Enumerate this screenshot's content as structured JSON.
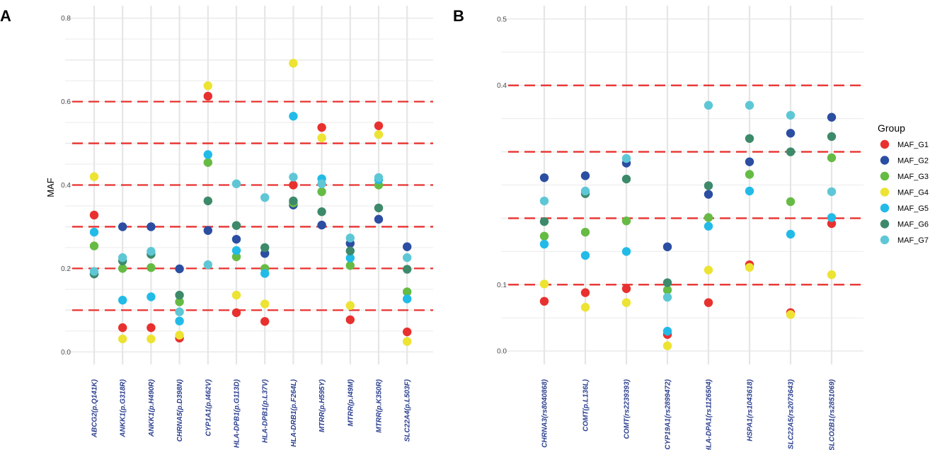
{
  "panels": [
    "A",
    "B"
  ],
  "group_colors": {
    "MAF_G1": "#e8312f",
    "MAF_G2": "#2b4ea2",
    "MAF_G3": "#66bb44",
    "MAF_G4": "#ede332",
    "MAF_G5": "#22bbe8",
    "MAF_G6": "#3d8a6b",
    "MAF_G7": "#5ec7d6"
  },
  "reference_line_color": "#e8312f",
  "legend": {
    "title": "Group",
    "entries": [
      "MAF_G1",
      "MAF_G2",
      "MAF_G3",
      "MAF_G4",
      "MAF_G5",
      "MAF_G6",
      "MAF_G7"
    ]
  },
  "chart_data": [
    {
      "panel": "A",
      "type": "scatter",
      "ylabel": "MAF",
      "xlabel": "",
      "ylim": [
        -0.03,
        0.83
      ],
      "yticks": [
        0.0,
        0.2,
        0.4,
        0.6,
        0.8
      ],
      "ytick_labels": [
        "0.0",
        "0.2",
        "0.4",
        "0.6",
        "0.8"
      ],
      "reference_lines": [
        0.1,
        0.2,
        0.3,
        0.4,
        0.5,
        0.6
      ],
      "grid": true,
      "categories": [
        "ABCG2(p.Q141K)",
        "ANKK1(p.G318R)",
        "ANKK1(p.H490R)",
        "CHRNA5(p.D398N)",
        "CYP1A1(p.I462V)",
        "HLA-DPB1(p.G113D)",
        "HLA-DPB1(p.L37V)",
        "HLA-DRB1(p.F264L)",
        "MTRR(p.H595Y)",
        "MTRR(p.I49M)",
        "MTRR(p.K350R)",
        "SLC22A4(p.L503F)"
      ],
      "series": [
        {
          "name": "MAF_G1",
          "values": [
            0.328,
            0.058,
            0.058,
            0.033,
            0.613,
            0.094,
            0.073,
            0.4,
            0.538,
            0.077,
            0.542,
            0.048
          ]
        },
        {
          "name": "MAF_G2",
          "values": [
            0.187,
            0.3,
            0.3,
            0.199,
            0.291,
            0.27,
            0.236,
            0.352,
            0.304,
            0.26,
            0.318,
            0.252
          ]
        },
        {
          "name": "MAF_G3",
          "values": [
            0.254,
            0.2,
            0.202,
            0.12,
            0.454,
            0.228,
            0.2,
            0.357,
            0.384,
            0.207,
            0.4,
            0.144
          ]
        },
        {
          "name": "MAF_G4",
          "values": [
            0.42,
            0.031,
            0.031,
            0.04,
            0.638,
            0.136,
            0.115,
            0.692,
            0.513,
            0.111,
            0.521,
            0.025
          ]
        },
        {
          "name": "MAF_G5",
          "values": [
            0.287,
            0.124,
            0.132,
            0.074,
            0.473,
            0.243,
            0.188,
            0.565,
            0.415,
            0.225,
            0.413,
            0.127
          ]
        },
        {
          "name": "MAF_G6",
          "values": [
            0.187,
            0.218,
            0.234,
            0.136,
            0.362,
            0.303,
            0.25,
            0.362,
            0.336,
            0.242,
            0.345,
            0.198
          ]
        },
        {
          "name": "MAF_G7",
          "values": [
            0.193,
            0.226,
            0.241,
            0.096,
            0.209,
            0.403,
            0.37,
            0.419,
            0.403,
            0.273,
            0.418,
            0.226
          ]
        }
      ]
    },
    {
      "panel": "B",
      "type": "scatter",
      "ylabel": "",
      "xlabel": "",
      "ylim": [
        -0.02,
        0.52
      ],
      "yticks": [
        0.0,
        0.1,
        0.4,
        0.5
      ],
      "ytick_labels": [
        "0.0",
        "0.1",
        "0.4",
        "0.5"
      ],
      "reference_lines": [
        0.1,
        0.2,
        0.3,
        0.4
      ],
      "grid": true,
      "categories": [
        "CHRNA3(rs8040868)",
        "COMT(p.L136L)",
        "COMT(rs2239393)",
        "CYP19A1(rs2899472)",
        "HLA-DPA1(rs1126504)",
        "HSPA1(rs1043618)",
        "SLC22A5(rs2073643)",
        "SLCO2B1(rs2851069)"
      ],
      "series": [
        {
          "name": "MAF_G1",
          "values": [
            0.075,
            0.088,
            0.094,
            0.025,
            0.073,
            0.13,
            0.058,
            0.192
          ]
        },
        {
          "name": "MAF_G2",
          "values": [
            0.261,
            0.264,
            0.283,
            0.157,
            0.236,
            0.285,
            0.328,
            0.352
          ]
        },
        {
          "name": "MAF_G3",
          "values": [
            0.173,
            0.179,
            0.196,
            0.092,
            0.201,
            0.266,
            0.225,
            0.291
          ]
        },
        {
          "name": "MAF_G4",
          "values": [
            0.101,
            0.066,
            0.073,
            0.008,
            0.122,
            0.126,
            0.055,
            0.115
          ]
        },
        {
          "name": "MAF_G5",
          "values": [
            0.161,
            0.144,
            0.15,
            0.03,
            0.188,
            0.241,
            0.176,
            0.201
          ]
        },
        {
          "name": "MAF_G6",
          "values": [
            0.195,
            0.237,
            0.259,
            0.103,
            0.249,
            0.32,
            0.3,
            0.323
          ]
        },
        {
          "name": "MAF_G7",
          "values": [
            0.226,
            0.241,
            0.29,
            0.081,
            0.37,
            0.37,
            0.355,
            0.24
          ]
        }
      ]
    }
  ]
}
